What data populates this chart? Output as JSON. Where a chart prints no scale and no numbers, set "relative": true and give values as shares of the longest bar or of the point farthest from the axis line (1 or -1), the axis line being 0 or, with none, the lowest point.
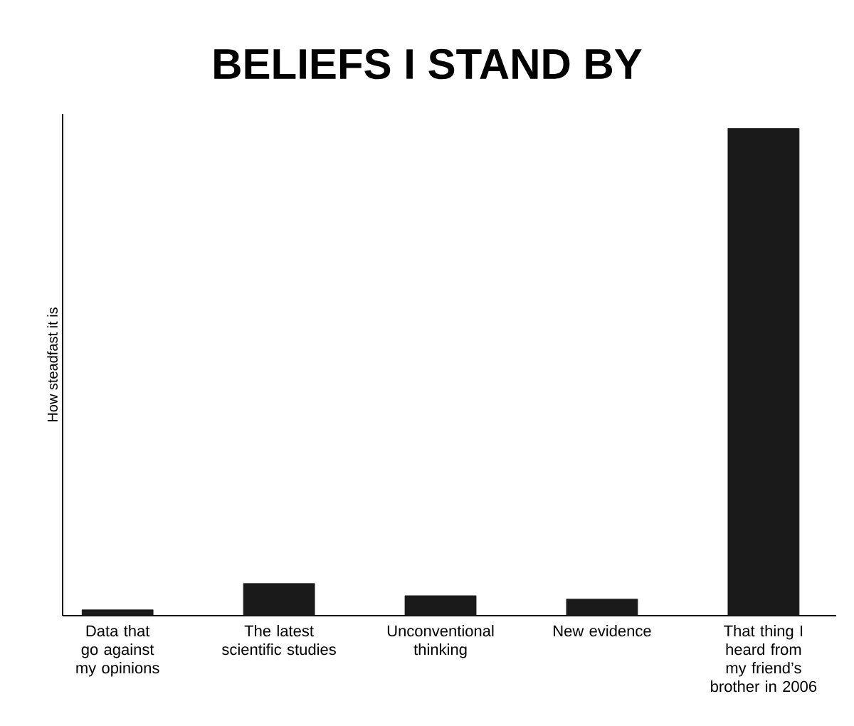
{
  "chart_data": {
    "type": "bar",
    "title": "BELIEFS I STAND BY",
    "ylabel": "How steadfast it is",
    "relative": true,
    "color": "#1a1a1a",
    "categories": [
      "Data that go against my opinions",
      "The latest scientific studies",
      "Unconventional thinking",
      "New evidence",
      "That thing I heard from my friend’s brother in 2006"
    ],
    "values": [
      0.012,
      0.066,
      0.041,
      0.034,
      1
    ]
  }
}
